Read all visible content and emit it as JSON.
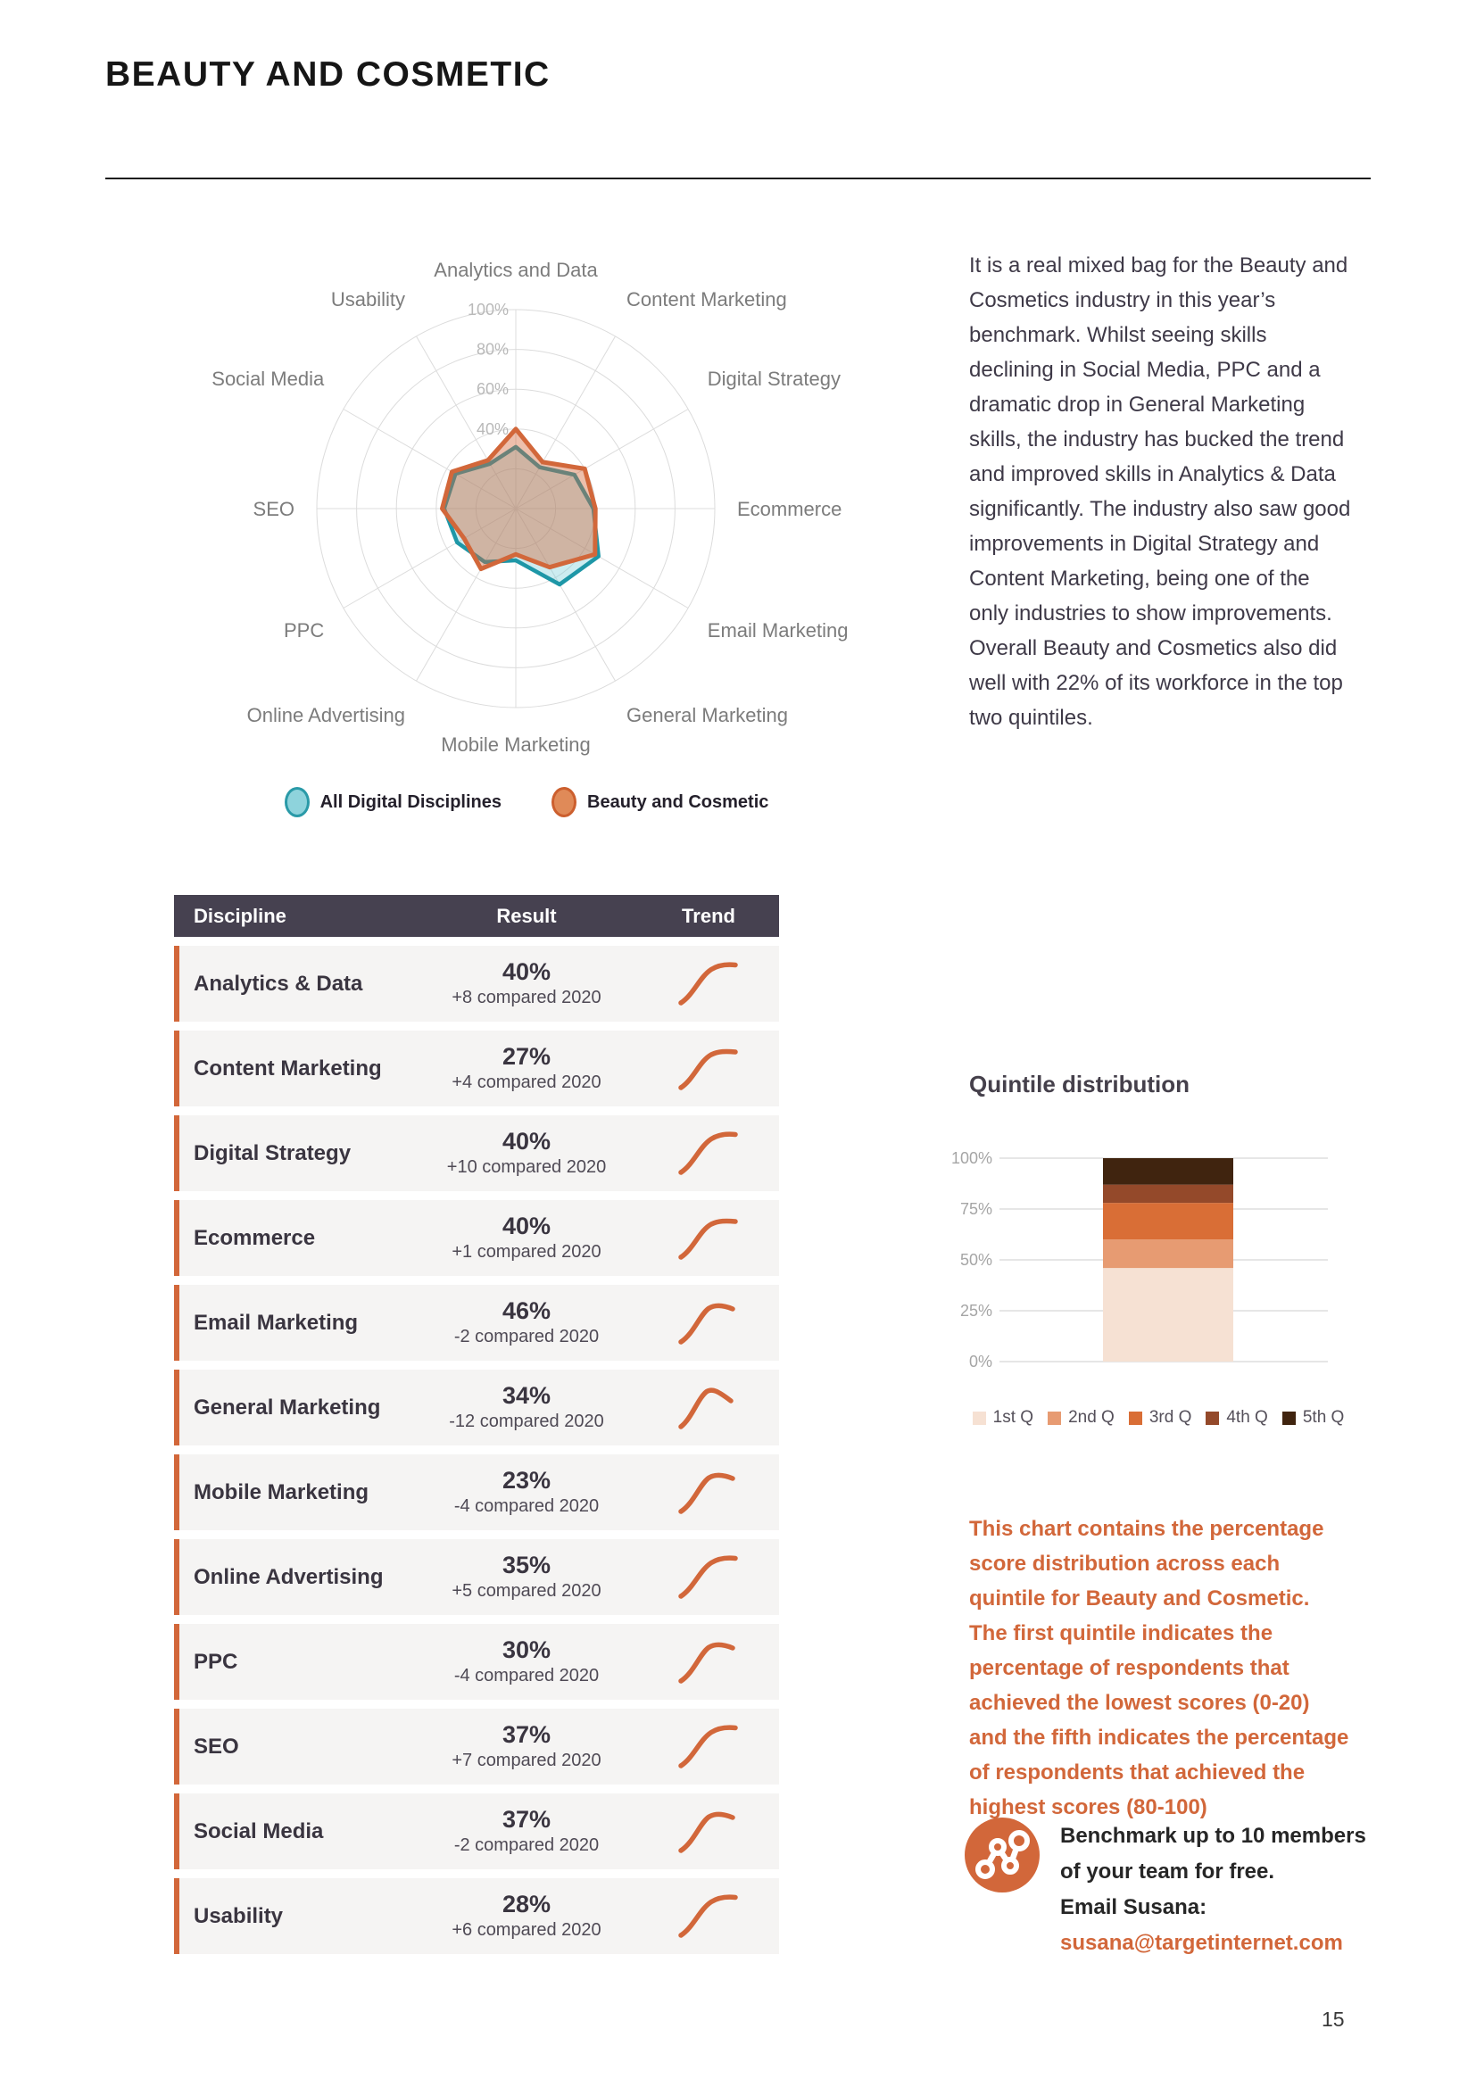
{
  "header": {
    "title": "BEAUTY AND COSMETIC"
  },
  "intro": {
    "text": "It is a real mixed bag for the Beauty and Cosmetics industry in this year’s benchmark. Whilst seeing skills declining in Social Media, PPC and a dramatic drop in General Marketing skills, the industry has bucked the trend and improved skills in Analytics & Data significantly. The industry also saw good improvements in Digital Strategy and Content Marketing, being one of the only industries to show improvements. Overall Beauty and Cosmetics also did well with 22% of its workforce in the top two quintiles."
  },
  "colors": {
    "accent_orange": "#d2673a",
    "teal": "#1e97a7",
    "table_header_bg": "#464150",
    "row_bg": "#f5f4f3"
  },
  "chart_data": [
    {
      "type": "radar",
      "categories": [
        "Analytics and Data",
        "Content Marketing",
        "Digital Strategy",
        "Ecommerce",
        "Email Marketing",
        "General Marketing",
        "Mobile Marketing",
        "Online Advertising",
        "PPC",
        "SEO",
        "Social Media",
        "Usability"
      ],
      "series": [
        {
          "name": "All Digital Disciplines",
          "values": [
            31,
            24,
            34,
            39,
            48,
            44,
            26,
            31,
            34,
            36,
            35,
            26
          ],
          "stroke": "#1e97a7",
          "fill": "rgba(109,201,212,0.35)"
        },
        {
          "name": "Beauty and Cosmetic",
          "values": [
            40,
            27,
            40,
            40,
            46,
            34,
            23,
            35,
            30,
            37,
            37,
            28
          ],
          "stroke": "#d2673a",
          "fill": "rgba(212,103,58,0.42)"
        }
      ],
      "rmax": 100,
      "ticks": [
        20,
        40,
        60,
        80,
        100
      ],
      "tick_labels_shown": [
        "40%",
        "60%",
        "80%",
        "100%"
      ],
      "legend_position": "bottom"
    },
    {
      "type": "bar",
      "stacked": true,
      "title": "Quintile distribution",
      "categories": [
        "Beauty and Cosmetic"
      ],
      "series": [
        {
          "name": "1st Q",
          "values": [
            46
          ],
          "color": "#f6e1d3"
        },
        {
          "name": "2nd Q",
          "values": [
            14
          ],
          "color": "#e79b72"
        },
        {
          "name": "3rd Q",
          "values": [
            18
          ],
          "color": "#d96e36"
        },
        {
          "name": "4th Q",
          "values": [
            9
          ],
          "color": "#94492a"
        },
        {
          "name": "5th Q",
          "values": [
            13
          ],
          "color": "#40240f"
        }
      ],
      "ylim": [
        0,
        100
      ],
      "yticks": [
        "0%",
        "25%",
        "50%",
        "75%",
        "100%"
      ],
      "grid": true,
      "legend_position": "bottom"
    }
  ],
  "radar_legend": [
    {
      "label": "All Digital Disciplines",
      "fill": "#8ed3dc",
      "border": "#2a9aa8"
    },
    {
      "label": "Beauty and Cosmetic",
      "fill": "#e08a58",
      "border": "#cc5f2e"
    }
  ],
  "table": {
    "headers": [
      "Discipline",
      "Result",
      "Trend"
    ],
    "rows": [
      {
        "discipline": "Analytics & Data",
        "result": "40%",
        "change": 8,
        "change_label": "+8 compared 2020"
      },
      {
        "discipline": "Content Marketing",
        "result": "27%",
        "change": 4,
        "change_label": "+4 compared 2020"
      },
      {
        "discipline": "Digital Strategy",
        "result": "40%",
        "change": 10,
        "change_label": "+10 compared 2020"
      },
      {
        "discipline": "Ecommerce",
        "result": "40%",
        "change": 1,
        "change_label": "+1 compared 2020"
      },
      {
        "discipline": "Email Marketing",
        "result": "46%",
        "change": -2,
        "change_label": "-2 compared 2020"
      },
      {
        "discipline": "General Marketing",
        "result": "34%",
        "change": -12,
        "change_label": "-12 compared 2020"
      },
      {
        "discipline": "Mobile Marketing",
        "result": "23%",
        "change": -4,
        "change_label": "-4 compared 2020"
      },
      {
        "discipline": "Online Advertising",
        "result": "35%",
        "change": 5,
        "change_label": "+5 compared 2020"
      },
      {
        "discipline": "PPC",
        "result": "30%",
        "change": -4,
        "change_label": "-4 compared 2020"
      },
      {
        "discipline": "SEO",
        "result": "37%",
        "change": 7,
        "change_label": "+7 compared 2020"
      },
      {
        "discipline": "Social Media",
        "result": "37%",
        "change": -2,
        "change_label": "-2 compared 2020"
      },
      {
        "discipline": "Usability",
        "result": "28%",
        "change": 6,
        "change_label": "+6 compared 2020"
      }
    ]
  },
  "quintile_section": {
    "title": "Quintile distribution",
    "description": "This chart contains the percentage score distribution across each quintile for Beauty and Cosmetic. The first quintile indicates the percentage of respondents that achieved the lowest scores (0-20) and the fifth indicates the percentage of respondents that achieved the highest scores (80-100)"
  },
  "cta": {
    "icon": "network-icon",
    "lines": [
      "Benchmark up to 10 members",
      "of your team for free.",
      "Email Susana:"
    ],
    "email": "susana@targetinternet.com"
  },
  "footer": {
    "page_number": "15"
  }
}
